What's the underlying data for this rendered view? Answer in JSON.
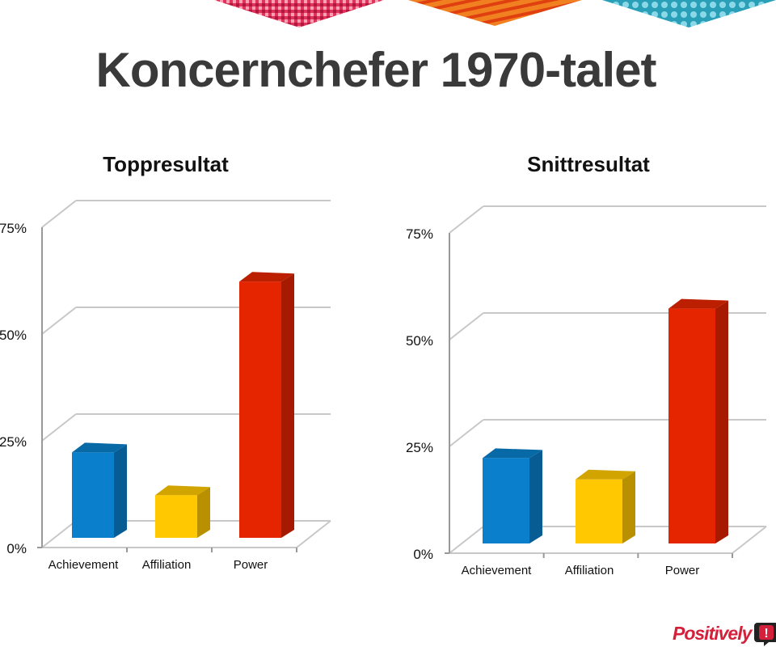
{
  "page": {
    "title": "Koncernchefer 1970-talet",
    "logo_text": "Positively",
    "logo_mark": "!"
  },
  "colors": {
    "achievement": "#0a80cc",
    "affiliation": "#ffc800",
    "power": "#e52400",
    "title_text": "#3a3a3a",
    "logo": "#d4203a"
  },
  "chart_data": [
    {
      "type": "bar",
      "title": "Toppresultat",
      "categories": [
        "Achievement",
        "Affiliation",
        "Power"
      ],
      "values": [
        20,
        10,
        60
      ],
      "yticks": [
        "0%",
        "25%",
        "50%",
        "75%"
      ],
      "ylim": [
        0,
        75
      ],
      "xlabel": "",
      "ylabel": "",
      "grid": true,
      "legend": "none",
      "style": "3d"
    },
    {
      "type": "bar",
      "title": "Snittresultat",
      "categories": [
        "Achievement",
        "Affiliation",
        "Power"
      ],
      "values": [
        20,
        15,
        55
      ],
      "yticks": [
        "0%",
        "25%",
        "50%",
        "75%"
      ],
      "ylim": [
        0,
        75
      ],
      "xlabel": "",
      "ylabel": "",
      "grid": true,
      "legend": "none",
      "style": "3d"
    }
  ]
}
